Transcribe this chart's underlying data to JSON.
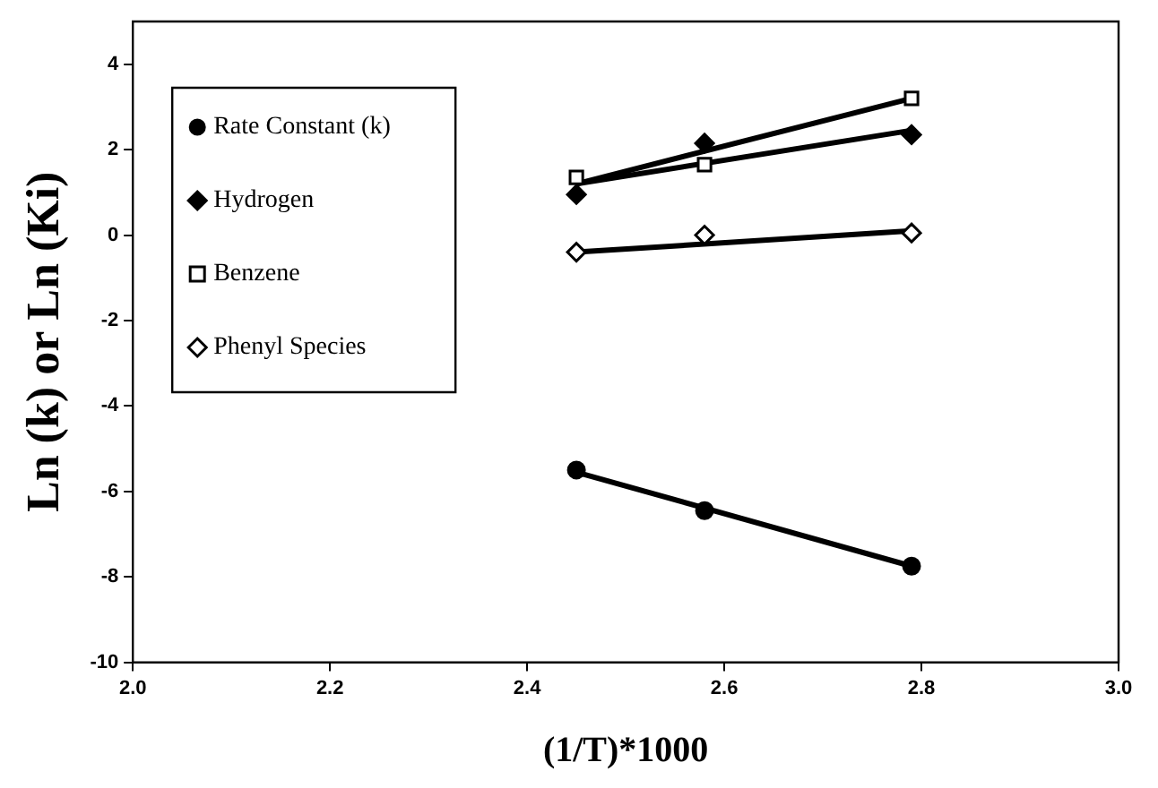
{
  "chart_data": {
    "type": "scatter",
    "xlabel": "(1/T)*1000",
    "ylabel": "Ln (k) or Ln (Ki)",
    "xlim": [
      2.0,
      3.0
    ],
    "xticks": [
      {
        "value": 2.0,
        "label": "2.0"
      },
      2.2,
      2.4,
      2.6,
      2.8,
      {
        "value": 3.0,
        "label": "3.0"
      }
    ],
    "ylim": [
      -10,
      5
    ],
    "yticks": [
      -10,
      -8,
      -6,
      -4,
      -2,
      0,
      2,
      4
    ],
    "grid": false,
    "legend": "top left",
    "series": [
      {
        "name": "Rate Constant (k)",
        "type": "scatter",
        "marker": "circle",
        "color": "#000000",
        "x": [
          2.45,
          2.58,
          2.79
        ],
        "values": [
          -5.5,
          -6.45,
          -7.75
        ]
      },
      {
        "name": "Hydrogen",
        "type": "scatter",
        "marker": "diamond",
        "color": "#000000",
        "x": [
          2.45,
          2.58,
          2.79
        ],
        "values": [
          0.95,
          2.15,
          2.35
        ]
      },
      {
        "name": "Benzene",
        "type": "scatter",
        "marker": "square",
        "color": "#000000",
        "x": [
          2.45,
          2.58,
          2.79
        ],
        "values": [
          1.35,
          1.65,
          3.2
        ]
      },
      {
        "name": "Phenyl Species",
        "type": "scatter",
        "marker": "diamond",
        "color": "#000000",
        "x": [
          2.45,
          2.58,
          2.79
        ],
        "values": [
          -0.4,
          0.0,
          0.05
        ]
      },
      {
        "type": "line",
        "marker": "none",
        "color": "#000000",
        "x": [
          2.45,
          2.79
        ],
        "values": [
          -5.55,
          -7.75
        ]
      },
      {
        "type": "line",
        "marker": "none",
        "color": "#000000",
        "x": [
          2.45,
          2.79
        ],
        "values": [
          1.2,
          2.45
        ]
      },
      {
        "type": "line",
        "marker": "none",
        "color": "#000000",
        "x": [
          2.45,
          2.79
        ],
        "values": [
          1.2,
          3.2
        ]
      },
      {
        "type": "line",
        "marker": "none",
        "color": "#000000",
        "x": [
          2.45,
          2.79
        ],
        "values": [
          -0.4,
          0.1
        ]
      }
    ]
  }
}
